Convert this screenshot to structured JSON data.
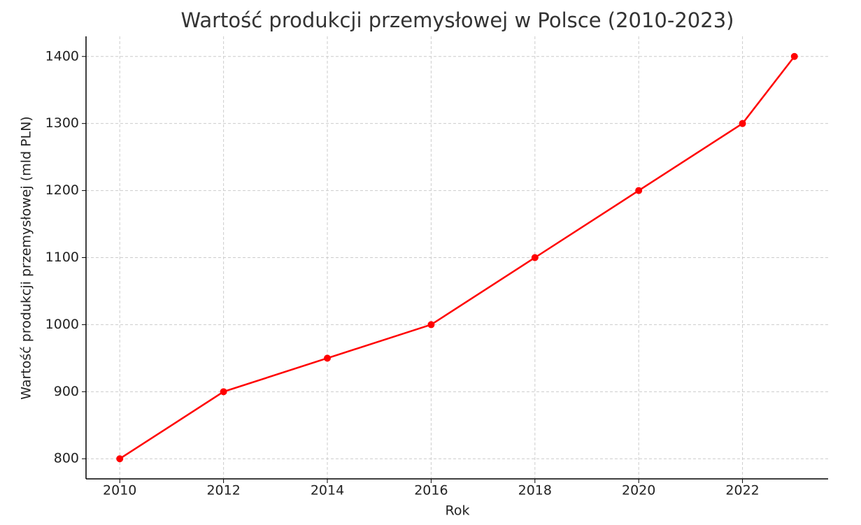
{
  "chart_data": {
    "type": "line",
    "title": "Wartość produkcji przemysłowej w Polsce (2010-2023)",
    "x_label": "Rok",
    "y_label": "Wartość produkcji przemysłowej (mld PLN)",
    "x": [
      2010,
      2012,
      2014,
      2016,
      2018,
      2020,
      2022,
      2023
    ],
    "series": [
      {
        "name": "Wartość produkcji",
        "color": "#ff0000",
        "values": [
          800,
          900,
          950,
          1000,
          1100,
          1200,
          1300,
          1400
        ]
      }
    ],
    "xlim": [
      2009.35,
      2023.65
    ],
    "xticks": [
      2010,
      2012,
      2014,
      2016,
      2018,
      2020,
      2022
    ],
    "ylim": [
      770,
      1430
    ],
    "yticks": [
      800,
      900,
      1000,
      1100,
      1200,
      1300,
      1400
    ],
    "grid": true
  }
}
